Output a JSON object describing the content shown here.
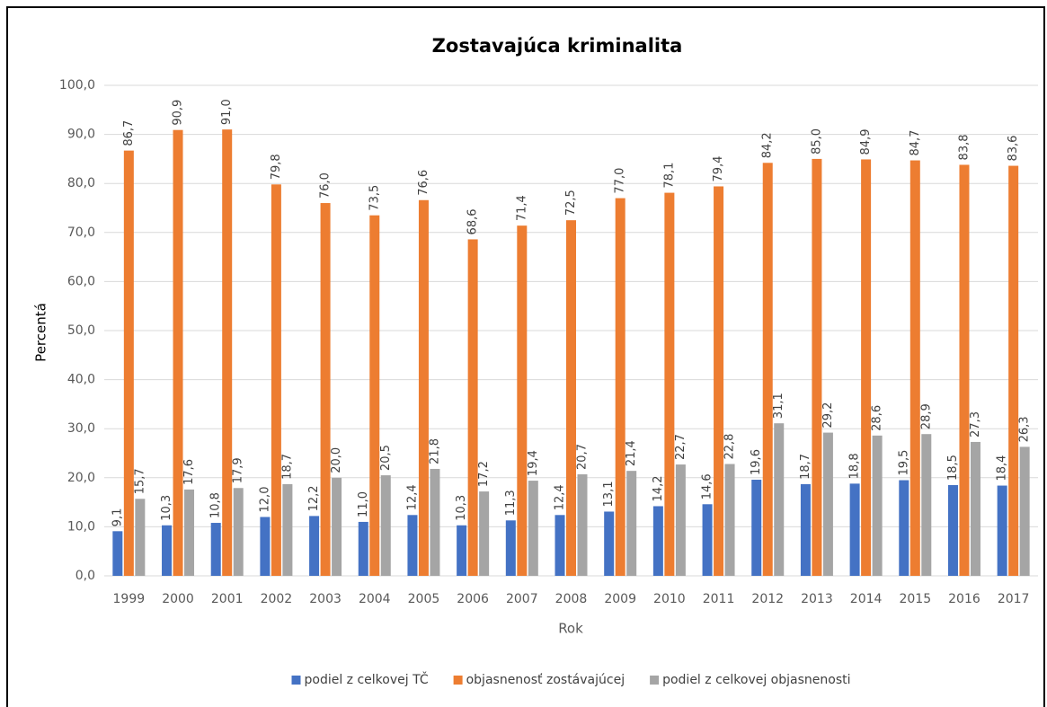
{
  "chart_data": {
    "type": "bar",
    "title": "Zostavajúca kriminalita",
    "xlabel": "Rok",
    "ylabel": "Percentá",
    "categories": [
      "1999",
      "2000",
      "2001",
      "2002",
      "2003",
      "2004",
      "2005",
      "2006",
      "2007",
      "2008",
      "2009",
      "2010",
      "2011",
      "2012",
      "2013",
      "2014",
      "2015",
      "2016",
      "2017"
    ],
    "series": [
      {
        "name": "podiel z celkovej TČ",
        "color": "#4472c4",
        "values": [
          9.1,
          10.3,
          10.8,
          12.0,
          12.2,
          11.0,
          12.4,
          10.3,
          11.3,
          12.4,
          13.1,
          14.2,
          14.6,
          19.6,
          18.7,
          18.8,
          19.5,
          18.5,
          18.4
        ],
        "value_labels": [
          "9,1",
          "10,3",
          "10,8",
          "12,0",
          "12,2",
          "11,0",
          "12,4",
          "10,3",
          "11,3",
          "12,4",
          "13,1",
          "14,2",
          "14,6",
          "19,6",
          "18,7",
          "18,8",
          "19,5",
          "18,5",
          "18,4"
        ]
      },
      {
        "name": "objasnenosť zostávajúcej",
        "color": "#ed7d31",
        "values": [
          86.7,
          90.9,
          91.0,
          79.8,
          76.0,
          73.5,
          76.6,
          68.6,
          71.4,
          72.5,
          77.0,
          78.1,
          79.4,
          84.2,
          85.0,
          84.9,
          84.7,
          83.8,
          83.6
        ],
        "value_labels": [
          "86,7",
          "90,9",
          "91,0",
          "79,8",
          "76,0",
          "73,5",
          "76,6",
          "68,6",
          "71,4",
          "72,5",
          "77,0",
          "78,1",
          "79,4",
          "84,2",
          "85,0",
          "84,9",
          "84,7",
          "83,8",
          "83,6"
        ]
      },
      {
        "name": "podiel z celkovej objasnenosti",
        "color": "#a5a5a5",
        "values": [
          15.7,
          17.6,
          17.9,
          18.7,
          20.0,
          20.5,
          21.8,
          17.2,
          19.4,
          20.7,
          21.4,
          22.7,
          22.8,
          31.1,
          29.2,
          28.6,
          28.9,
          27.3,
          26.3
        ],
        "value_labels": [
          "15,7",
          "17,6",
          "17,9",
          "18,7",
          "20,0",
          "20,5",
          "21,8",
          "17,2",
          "19,4",
          "20,7",
          "21,4",
          "22,7",
          "22,8",
          "31,1",
          "29,2",
          "28,6",
          "28,9",
          "27,3",
          "26,3"
        ]
      }
    ],
    "ylim": [
      0,
      100
    ],
    "yticks": [
      {
        "value": 0,
        "label": "0,0"
      },
      {
        "value": 10,
        "label": "10,0"
      },
      {
        "value": 20,
        "label": "20,0"
      },
      {
        "value": 30,
        "label": "30,0"
      },
      {
        "value": 40,
        "label": "40,0"
      },
      {
        "value": 50,
        "label": "50,0"
      },
      {
        "value": 60,
        "label": "60,0"
      },
      {
        "value": 70,
        "label": "70,0"
      },
      {
        "value": 80,
        "label": "80,0"
      },
      {
        "value": 90,
        "label": "90,0"
      },
      {
        "value": 100,
        "label": "100,0"
      }
    ],
    "grid": true,
    "legend": "bottom"
  }
}
